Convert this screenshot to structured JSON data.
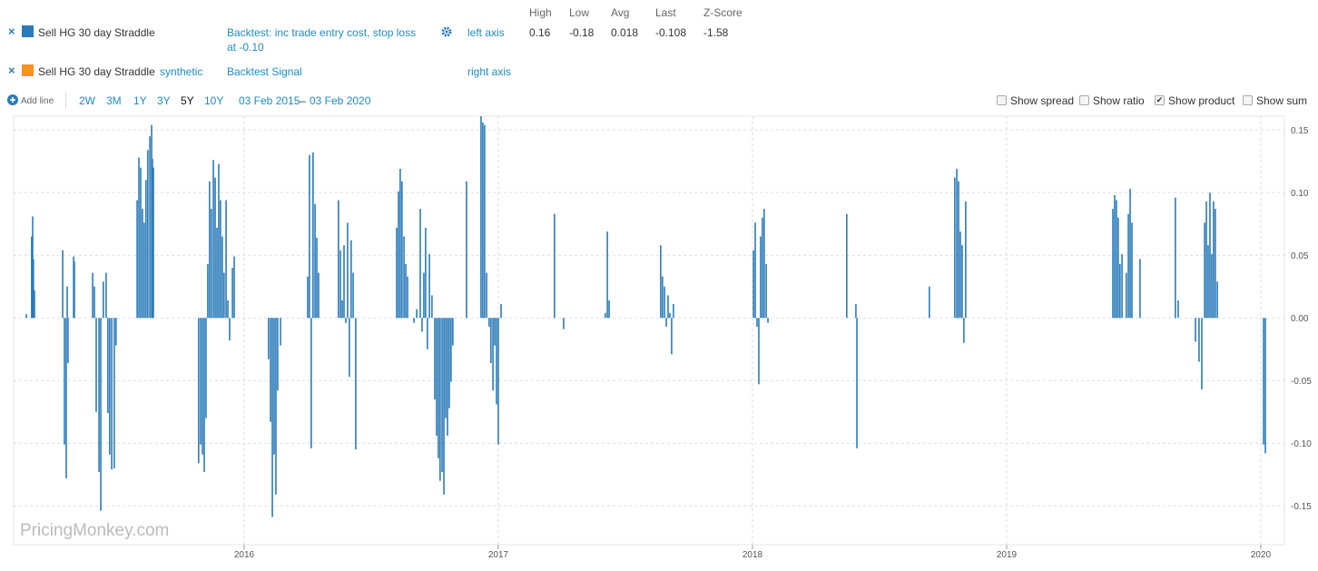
{
  "legend_rows": [
    {
      "remove": "×",
      "name": "Sell HG 30 day Straddle",
      "color": "#2b7bb9",
      "kind": "",
      "description": "Backtest: inc trade entry cost, stop loss at -0.10",
      "axis": "left axis"
    },
    {
      "remove": "×",
      "name": "Sell HG 30 day Straddle",
      "color": "#f7931e",
      "kind": "synthetic",
      "description": "Backtest Signal",
      "axis": "right axis"
    }
  ],
  "stats": {
    "headers": [
      "High",
      "Low",
      "Avg",
      "Last",
      "Z-Score"
    ],
    "values": [
      0.16,
      -0.18,
      0.018,
      -0.108,
      -1.58
    ]
  },
  "controls": {
    "add_line": "Add line",
    "ranges": [
      "2W",
      "3M",
      "1Y",
      "3Y",
      "5Y",
      "10Y"
    ],
    "active_range": 4,
    "start_date": "03 Feb 2015",
    "date_sep": "–",
    "end_date": "03 Feb 2020",
    "options": [
      {
        "label": "Show spread",
        "checked": false
      },
      {
        "label": "Show ratio",
        "checked": false
      },
      {
        "label": "Show product",
        "checked": true
      },
      {
        "label": "Show sum",
        "checked": false
      }
    ]
  },
  "watermark": "PricingMonkey.com",
  "chart_data": {
    "type": "bar",
    "xlim": [
      2015.093,
      2020.093
    ],
    "xticks": [
      2016,
      2017,
      2018,
      2019,
      2020
    ],
    "ylim": [
      -0.181,
      0.161
    ],
    "yticks": [
      0.15,
      {
        "value": 0.1,
        "label": "0.10"
      },
      0.05,
      {
        "value": 0,
        "label": "0.00"
      },
      -0.05,
      {
        "value": -0.1,
        "label": "-0.10"
      },
      -0.15
    ],
    "grid": true,
    "series": [
      {
        "name": "Sell HG 30 day Straddle",
        "color": "#2b7bb9",
        "x": [
          2015.143,
          2015.164,
          2015.168,
          2015.171,
          2015.175,
          2015.286,
          2015.293,
          2015.3,
          2015.304,
          2015.307,
          2015.329,
          2015.332,
          2015.404,
          2015.411,
          2015.418,
          2015.429,
          2015.436,
          2015.446,
          2015.457,
          2015.464,
          2015.471,
          2015.479,
          2015.489,
          2015.496,
          2015.579,
          2015.586,
          2015.593,
          2015.6,
          2015.607,
          2015.614,
          2015.621,
          2015.629,
          2015.636,
          2015.639,
          2015.643,
          2015.821,
          2015.829,
          2015.836,
          2015.843,
          2015.85,
          2015.857,
          2015.864,
          2015.871,
          2015.879,
          2015.886,
          2015.893,
          2015.9,
          2015.907,
          2015.914,
          2015.921,
          2015.929,
          2015.936,
          2015.943,
          2015.954,
          2015.961,
          2016.096,
          2016.104,
          2016.111,
          2016.118,
          2016.125,
          2016.132,
          2016.143,
          2016.25,
          2016.257,
          2016.264,
          2016.271,
          2016.279,
          2016.286,
          2016.293,
          2016.371,
          2016.379,
          2016.386,
          2016.393,
          2016.4,
          2016.407,
          2016.414,
          2016.421,
          2016.429,
          2016.439,
          2016.6,
          2016.607,
          2016.614,
          2016.621,
          2016.629,
          2016.636,
          2016.643,
          2016.668,
          2016.679,
          2016.693,
          2016.7,
          2016.707,
          2016.714,
          2016.721,
          2016.729,
          2016.739,
          2016.75,
          2016.757,
          2016.764,
          2016.771,
          2016.779,
          2016.786,
          2016.793,
          2016.8,
          2016.807,
          2016.814,
          2016.821,
          2016.875,
          2016.932,
          2016.939,
          2016.946,
          2016.954,
          2016.964,
          2016.971,
          2016.979,
          2016.986,
          2016.993,
          2017.0,
          2017.011,
          2017.221,
          2017.257,
          2017.421,
          2017.429,
          2017.436,
          2017.639,
          2017.646,
          2017.654,
          2017.661,
          2017.668,
          2017.675,
          2017.682,
          2017.689,
          2018.004,
          2018.011,
          2018.018,
          2018.025,
          2018.032,
          2018.039,
          2018.046,
          2018.054,
          2018.061,
          2018.371,
          2018.407,
          2018.411,
          2018.696,
          2018.796,
          2018.804,
          2018.811,
          2018.818,
          2018.825,
          2018.832,
          2018.839,
          2019.418,
          2019.425,
          2019.432,
          2019.439,
          2019.446,
          2019.454,
          2019.471,
          2019.479,
          2019.486,
          2019.493,
          2019.525,
          2019.664,
          2019.675,
          2019.743,
          2019.757,
          2019.768,
          2019.779,
          2019.786,
          2019.793,
          2019.8,
          2019.807,
          2019.814,
          2019.821,
          2019.829,
          2020.011,
          2020.018
        ],
        "values": [
          0.003,
          0.065,
          0.081,
          0.047,
          0.022,
          0.054,
          -0.101,
          -0.128,
          0.025,
          -0.036,
          0.049,
          0.045,
          0.036,
          0.025,
          -0.075,
          -0.123,
          -0.154,
          0.029,
          0.036,
          -0.076,
          -0.109,
          -0.121,
          -0.12,
          -0.022,
          0.094,
          0.128,
          0.12,
          0.087,
          0.076,
          0.11,
          0.134,
          0.145,
          0.154,
          0.127,
          0.12,
          -0.116,
          -0.101,
          -0.109,
          -0.123,
          -0.08,
          0.043,
          0.109,
          0.087,
          0.126,
          0.112,
          0.072,
          0.123,
          0.094,
          0.065,
          0.036,
          0.094,
          0.014,
          -0.018,
          0.04,
          0.049,
          -0.033,
          -0.083,
          -0.159,
          -0.109,
          -0.141,
          -0.058,
          -0.022,
          0.033,
          0.13,
          -0.104,
          0.132,
          0.091,
          0.064,
          0.036,
          0.094,
          0.054,
          0.014,
          0.058,
          -0.004,
          0.076,
          -0.047,
          0.062,
          0.036,
          -0.105,
          0.072,
          0.101,
          0.119,
          0.109,
          0.065,
          0.043,
          0.033,
          -0.004,
          0.007,
          0.087,
          -0.011,
          0.036,
          0.072,
          -0.025,
          0.051,
          0.018,
          -0.065,
          -0.094,
          -0.112,
          -0.13,
          -0.123,
          -0.141,
          -0.08,
          -0.094,
          -0.072,
          -0.051,
          -0.022,
          0.109,
          0.161,
          0.156,
          0.154,
          0.036,
          -0.007,
          -0.036,
          -0.058,
          -0.022,
          -0.069,
          -0.101,
          0.011,
          0.083,
          -0.009,
          0.004,
          0.069,
          0.014,
          0.058,
          0.033,
          0.025,
          -0.007,
          0.018,
          0.004,
          -0.029,
          0.011,
          0.054,
          0.076,
          -0.007,
          -0.053,
          0.065,
          0.08,
          0.087,
          0.043,
          -0.004,
          0.083,
          0.011,
          -0.104,
          0.025,
          0.112,
          0.119,
          0.109,
          0.069,
          0.058,
          -0.02,
          0.093,
          0.087,
          0.098,
          0.094,
          0.08,
          0.043,
          0.051,
          0.036,
          0.083,
          0.103,
          0.076,
          0.047,
          0.096,
          0.014,
          -0.019,
          -0.035,
          -0.057,
          0.076,
          0.093,
          0.058,
          0.1,
          0.051,
          0.093,
          0.087,
          0.029,
          -0.101,
          -0.108
        ]
      }
    ]
  }
}
